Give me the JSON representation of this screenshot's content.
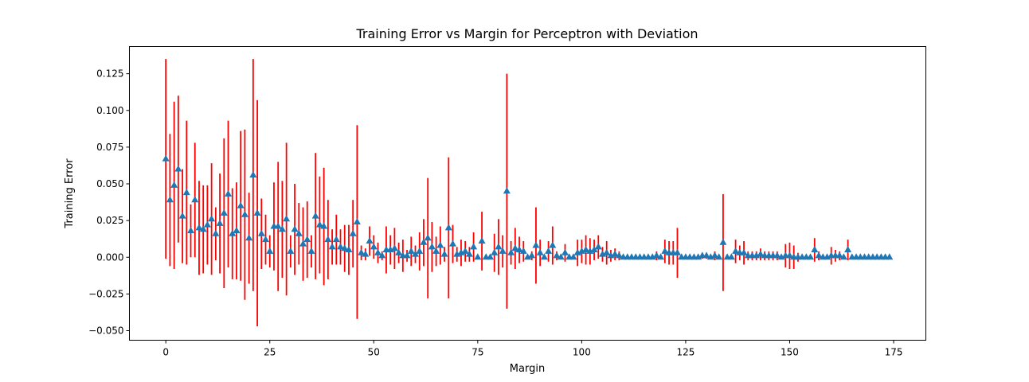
{
  "chart_data": {
    "type": "scatter",
    "title": "Training Error vs Margin for Perceptron with Deviation",
    "xlabel": "Margin",
    "ylabel": "Training Error",
    "xlim": [
      -8.75,
      182.75
    ],
    "ylim": [
      -0.0565,
      0.1435
    ],
    "xticks": [
      0,
      25,
      50,
      75,
      100,
      125,
      150,
      175
    ],
    "xtick_labels": [
      "0",
      "25",
      "50",
      "75",
      "100",
      "125",
      "150",
      "175"
    ],
    "yticks": [
      -0.05,
      -0.025,
      0.0,
      0.025,
      0.05,
      0.075,
      0.1,
      0.125
    ],
    "ytick_labels": [
      "−0.050",
      "−0.025",
      "0.000",
      "0.025",
      "0.050",
      "0.075",
      "0.100",
      "0.125"
    ],
    "grid": false,
    "marker_color": "#1f77b4",
    "errorbar_color": "#ff0000",
    "series": [
      {
        "name": "training error",
        "marker": "triangle",
        "x": [
          0,
          1,
          2,
          3,
          4,
          5,
          6,
          7,
          8,
          9,
          10,
          11,
          12,
          13,
          14,
          15,
          16,
          17,
          18,
          19,
          20,
          21,
          22,
          23,
          24,
          25,
          26,
          27,
          28,
          29,
          30,
          31,
          32,
          33,
          34,
          35,
          36,
          37,
          38,
          39,
          40,
          41,
          42,
          43,
          44,
          45,
          46,
          47,
          48,
          49,
          50,
          51,
          52,
          53,
          54,
          55,
          56,
          57,
          58,
          59,
          60,
          61,
          62,
          63,
          64,
          65,
          66,
          67,
          68,
          69,
          70,
          71,
          72,
          73,
          74,
          75,
          76,
          77,
          78,
          79,
          80,
          81,
          82,
          83,
          84,
          85,
          86,
          87,
          88,
          89,
          90,
          91,
          92,
          93,
          94,
          95,
          96,
          97,
          98,
          99,
          100,
          101,
          102,
          103,
          104,
          105,
          106,
          107,
          108,
          109,
          110,
          111,
          112,
          113,
          114,
          115,
          116,
          117,
          118,
          119,
          120,
          121,
          122,
          123,
          124,
          125,
          126,
          127,
          128,
          129,
          130,
          131,
          132,
          133,
          134,
          135,
          136,
          137,
          138,
          139,
          140,
          141,
          142,
          143,
          144,
          145,
          146,
          147,
          148,
          149,
          150,
          151,
          152,
          153,
          154,
          155,
          156,
          157,
          158,
          159,
          160,
          161,
          162,
          163,
          164,
          165,
          166,
          167,
          168,
          169,
          170,
          171,
          172,
          173,
          174
        ],
        "y": [
          0.067,
          0.039,
          0.049,
          0.06,
          0.028,
          0.044,
          0.018,
          0.039,
          0.02,
          0.019,
          0.022,
          0.026,
          0.016,
          0.023,
          0.03,
          0.043,
          0.016,
          0.018,
          0.035,
          0.029,
          0.013,
          0.056,
          0.03,
          0.016,
          0.012,
          0.004,
          0.021,
          0.021,
          0.019,
          0.026,
          0.004,
          0.019,
          0.016,
          0.009,
          0.012,
          0.004,
          0.028,
          0.022,
          0.021,
          0.012,
          0.007,
          0.012,
          0.007,
          0.006,
          0.005,
          0.016,
          0.024,
          0.003,
          0.002,
          0.011,
          0.007,
          0.003,
          0.001,
          0.005,
          0.005,
          0.006,
          0.003,
          0.001,
          0.001,
          0.004,
          0.002,
          0.004,
          0.01,
          0.013,
          0.007,
          0.004,
          0.008,
          0.002,
          0.02,
          0.009,
          0.002,
          0.003,
          0.004,
          0.002,
          0.007,
          0.0,
          0.011,
          0.0,
          0.0,
          0.003,
          0.007,
          0.004,
          0.045,
          0.003,
          0.006,
          0.005,
          0.004,
          0.0,
          0.001,
          0.008,
          0.003,
          0.0,
          0.004,
          0.008,
          0.001,
          0.0,
          0.003,
          0.0,
          0.0,
          0.003,
          0.004,
          0.005,
          0.004,
          0.005,
          0.007,
          0.002,
          0.003,
          0.001,
          0.002,
          0.001,
          0.0,
          0.0,
          0.0,
          0.0,
          0.0,
          0.0,
          0.0,
          0.0,
          0.001,
          0.0,
          0.004,
          0.003,
          0.003,
          0.003,
          0.0,
          0.0,
          0.0,
          0.0,
          0.0,
          0.001,
          0.001,
          0.0,
          0.001,
          0.0,
          0.01,
          0.0,
          0.0,
          0.004,
          0.003,
          0.003,
          0.001,
          0.001,
          0.001,
          0.002,
          0.001,
          0.001,
          0.001,
          0.001,
          0.0,
          0.001,
          0.001,
          0.0,
          0.0,
          0.0,
          0.0,
          0.0,
          0.005,
          0.001,
          0.0,
          0.0,
          0.001,
          0.001,
          0.001,
          0.0,
          0.005,
          0.0,
          0.0,
          0.0,
          0.0,
          0.0,
          0.0,
          0.0,
          0.0,
          0.0,
          0.0
        ],
        "yerr": [
          0.068,
          0.045,
          0.057,
          0.05,
          0.032,
          0.049,
          0.018,
          0.039,
          0.032,
          0.03,
          0.027,
          0.038,
          0.018,
          0.034,
          0.051,
          0.05,
          0.031,
          0.033,
          0.051,
          0.058,
          0.031,
          0.079,
          0.077,
          0.024,
          0.017,
          0.011,
          0.03,
          0.044,
          0.033,
          0.052,
          0.011,
          0.031,
          0.021,
          0.025,
          0.026,
          0.011,
          0.043,
          0.033,
          0.04,
          0.027,
          0.012,
          0.017,
          0.012,
          0.016,
          0.017,
          0.023,
          0.066,
          0.005,
          0.004,
          0.01,
          0.008,
          0.007,
          0.003,
          0.016,
          0.01,
          0.014,
          0.007,
          0.011,
          0.004,
          0.01,
          0.006,
          0.013,
          0.016,
          0.041,
          0.017,
          0.01,
          0.013,
          0.005,
          0.048,
          0.013,
          0.005,
          0.009,
          0.007,
          0.005,
          0.01,
          0.0,
          0.02,
          0.0,
          0.0,
          0.013,
          0.019,
          0.011,
          0.08,
          0.008,
          0.014,
          0.009,
          0.007,
          0.0,
          0.003,
          0.026,
          0.009,
          0.0,
          0.007,
          0.013,
          0.003,
          0.0,
          0.006,
          0.0,
          0.0,
          0.009,
          0.008,
          0.01,
          0.009,
          0.007,
          0.008,
          0.005,
          0.008,
          0.004,
          0.004,
          0.003,
          0.0,
          0.0,
          0.0,
          0.0,
          0.0,
          0.0,
          0.0,
          0.0,
          0.003,
          0.0,
          0.008,
          0.008,
          0.008,
          0.017,
          0.0,
          0.0,
          0.0,
          0.0,
          0.0,
          0.002,
          0.002,
          0.0,
          0.003,
          0.0,
          0.033,
          0.0,
          0.0,
          0.008,
          0.005,
          0.008,
          0.003,
          0.003,
          0.003,
          0.004,
          0.003,
          0.003,
          0.003,
          0.003,
          0.0,
          0.008,
          0.009,
          0.008,
          0.003,
          0.0,
          0.0,
          0.0,
          0.008,
          0.003,
          0.0,
          0.0,
          0.006,
          0.004,
          0.003,
          0.0,
          0.007,
          0.0,
          0.0,
          0.0,
          0.0,
          0.0,
          0.0,
          0.0,
          0.0,
          0.0,
          0.0
        ]
      }
    ]
  }
}
